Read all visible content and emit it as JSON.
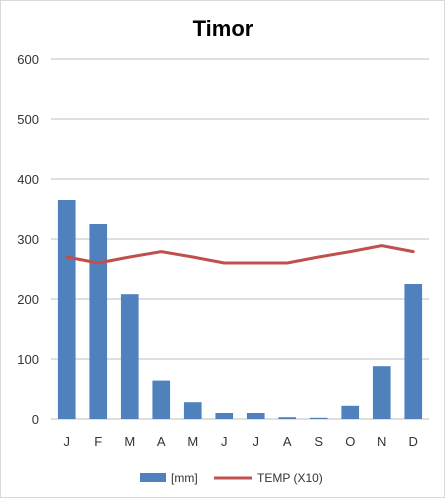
{
  "chart_data": {
    "type": "bar",
    "title": "Timor",
    "categories": [
      "J",
      "F",
      "M",
      "A",
      "M",
      "J",
      "J",
      "A",
      "S",
      "O",
      "N",
      "D"
    ],
    "series": [
      {
        "name": "[mm]",
        "type": "bar",
        "color": "#4F81BD",
        "values": [
          365,
          325,
          208,
          64,
          28,
          10,
          10,
          3,
          2,
          22,
          88,
          225
        ]
      },
      {
        "name": "TEMP (X10)",
        "type": "line",
        "color": "#C0504D",
        "values": [
          270,
          260,
          270,
          279,
          270,
          260,
          260,
          260,
          270,
          279,
          289,
          279
        ]
      }
    ],
    "ylim": [
      0,
      600
    ],
    "yticks": [
      "0",
      "100",
      "200",
      "300",
      "400",
      "500",
      "600"
    ],
    "grid": true,
    "legend_position": "bottom"
  }
}
